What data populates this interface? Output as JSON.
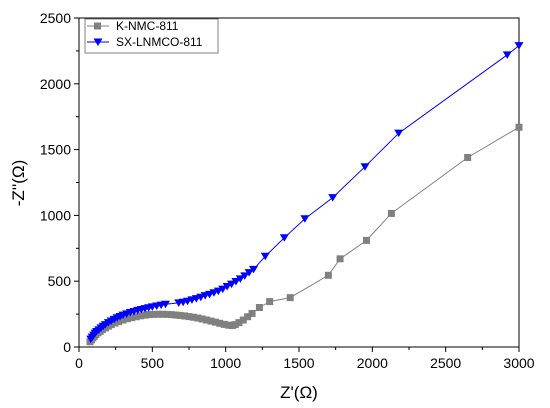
{
  "chart_data": {
    "type": "scatter",
    "title": "",
    "xlabel": "Z'(Ω)",
    "ylabel": "-Z''(Ω)",
    "xlim": [
      0,
      3000
    ],
    "ylim": [
      0,
      2500
    ],
    "x_ticks": [
      0,
      500,
      1000,
      1500,
      2000,
      2500,
      3000
    ],
    "y_ticks": [
      0,
      500,
      1000,
      1500,
      2000,
      2500
    ],
    "grid": false,
    "legend_position": "top-left",
    "series": [
      {
        "name": "K-NMC-811",
        "marker": "square",
        "color": "#808080",
        "points": [
          [
            75,
            40
          ],
          [
            85,
            55
          ],
          [
            95,
            70
          ],
          [
            105,
            82
          ],
          [
            115,
            95
          ],
          [
            130,
            108
          ],
          [
            145,
            120
          ],
          [
            160,
            132
          ],
          [
            180,
            145
          ],
          [
            200,
            158
          ],
          [
            220,
            170
          ],
          [
            245,
            182
          ],
          [
            270,
            193
          ],
          [
            300,
            205
          ],
          [
            330,
            215
          ],
          [
            360,
            223
          ],
          [
            390,
            230
          ],
          [
            420,
            237
          ],
          [
            450,
            242
          ],
          [
            480,
            246
          ],
          [
            510,
            248
          ],
          [
            540,
            249
          ],
          [
            570,
            249
          ],
          [
            600,
            248
          ],
          [
            630,
            246
          ],
          [
            660,
            243
          ],
          [
            690,
            240
          ],
          [
            720,
            236
          ],
          [
            750,
            231
          ],
          [
            780,
            226
          ],
          [
            810,
            220
          ],
          [
            840,
            213
          ],
          [
            870,
            205
          ],
          [
            900,
            197
          ],
          [
            930,
            189
          ],
          [
            960,
            180
          ],
          [
            990,
            172
          ],
          [
            1020,
            166
          ],
          [
            1045,
            163
          ],
          [
            1065,
            170
          ],
          [
            1090,
            185
          ],
          [
            1120,
            205
          ],
          [
            1150,
            230
          ],
          [
            1180,
            255
          ],
          [
            1230,
            300
          ],
          [
            1300,
            345
          ],
          [
            1440,
            375
          ],
          [
            1700,
            545
          ],
          [
            1780,
            670
          ],
          [
            1960,
            810
          ],
          [
            2130,
            1015
          ],
          [
            2650,
            1440
          ],
          [
            3000,
            1670
          ]
        ]
      },
      {
        "name": "SX-LNMCO-811",
        "marker": "triangle-down",
        "color": "#0000ff",
        "points": [
          [
            80,
            60
          ],
          [
            90,
            75
          ],
          [
            100,
            90
          ],
          [
            110,
            105
          ],
          [
            120,
            118
          ],
          [
            135,
            130
          ],
          [
            150,
            145
          ],
          [
            165,
            158
          ],
          [
            180,
            170
          ],
          [
            200,
            185
          ],
          [
            220,
            198
          ],
          [
            240,
            210
          ],
          [
            260,
            222
          ],
          [
            280,
            232
          ],
          [
            300,
            242
          ],
          [
            325,
            252
          ],
          [
            350,
            262
          ],
          [
            375,
            270
          ],
          [
            400,
            278
          ],
          [
            425,
            285
          ],
          [
            450,
            292
          ],
          [
            475,
            298
          ],
          [
            500,
            305
          ],
          [
            530,
            312
          ],
          [
            560,
            318
          ],
          [
            590,
            325
          ],
          [
            680,
            335
          ],
          [
            710,
            340
          ],
          [
            740,
            348
          ],
          [
            770,
            358
          ],
          [
            800,
            368
          ],
          [
            830,
            378
          ],
          [
            860,
            390
          ],
          [
            890,
            400
          ],
          [
            920,
            412
          ],
          [
            950,
            425
          ],
          [
            980,
            440
          ],
          [
            1010,
            460
          ],
          [
            1040,
            478
          ],
          [
            1070,
            498
          ],
          [
            1100,
            518
          ],
          [
            1130,
            540
          ],
          [
            1160,
            565
          ],
          [
            1190,
            590
          ],
          [
            1270,
            690
          ],
          [
            1400,
            830
          ],
          [
            1540,
            975
          ],
          [
            1730,
            1135
          ],
          [
            1950,
            1370
          ],
          [
            2180,
            1625
          ],
          [
            2920,
            2220
          ],
          [
            3000,
            2290
          ]
        ]
      }
    ]
  }
}
